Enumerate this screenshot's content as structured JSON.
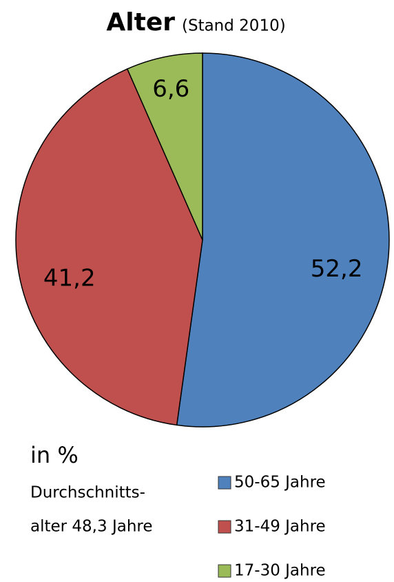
{
  "chart_data": {
    "type": "pie",
    "title": "Alter",
    "subtitle": "(Stand 2010)",
    "categories": [
      "50-65 Jahre",
      "31-49 Jahre",
      "17-30 Jahre"
    ],
    "values": [
      52.2,
      41.2,
      6.6
    ],
    "value_labels": [
      "52,2",
      "41,2",
      "6,6"
    ],
    "colors": [
      "#4f81bd",
      "#c0504d",
      "#9bbb59"
    ],
    "annotations": [
      "in %",
      "Durchschnitts-",
      "alter 48,3 Jahre"
    ],
    "legend": "bottom-right"
  }
}
